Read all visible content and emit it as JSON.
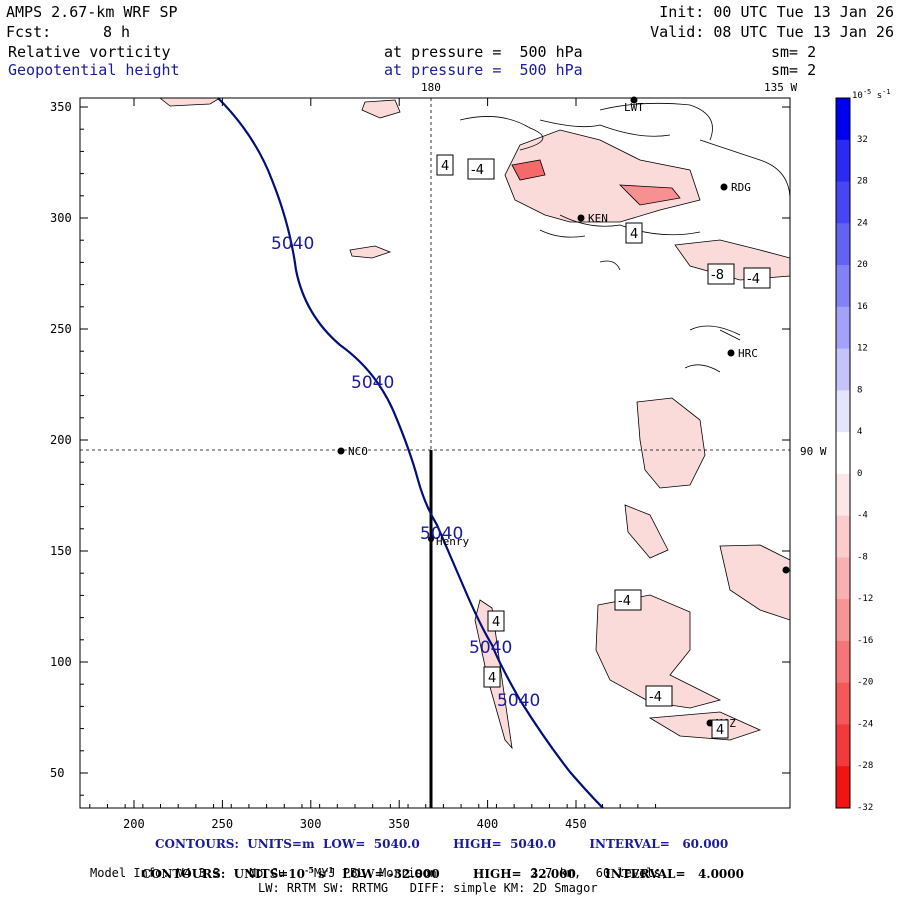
{
  "header": {
    "model": "AMPS 2.67-km WRF SP",
    "init": "Init: 00 UTC Tue 13 Jan 26",
    "fcst_label": "Fcst:",
    "fcst_value": "8 h",
    "valid": "Valid: 08 UTC Tue 13 Jan 26",
    "field1": "Relative vorticity",
    "field1_pressure": "at pressure =  500 hPa",
    "field1_sm": "sm= 2",
    "field2": "Geopotential height",
    "field2_pressure": "at pressure =  500 hPa",
    "field2_sm": "sm= 2"
  },
  "map": {
    "longitude_labels": [
      "180",
      "135 W",
      "90 W"
    ],
    "stations": [
      "LWT",
      "RDG",
      "KEN",
      "HRC",
      "NCO",
      "Henry",
      "MGZ"
    ],
    "x_ticks": [
      200,
      250,
      300,
      350,
      400,
      450
    ],
    "y_ticks": [
      50,
      100,
      150,
      200,
      250,
      300,
      350
    ],
    "height_contour_label": "5040",
    "vorticity_labels": [
      "4",
      "-4",
      "4",
      "-8",
      "-4",
      "-4",
      "4",
      "4",
      "-4",
      "4"
    ]
  },
  "colorbar": {
    "unit_base": "10",
    "unit_exp": "-5",
    "unit_tail": " s",
    "unit_tail_exp": "-1",
    "ticks": [
      "32",
      "28",
      "24",
      "20",
      "16",
      "12",
      "8",
      "4",
      "0",
      "-4",
      "-8",
      "-12",
      "-16",
      "-20",
      "-24",
      "-28",
      "-32"
    ],
    "colors": [
      "#0000f0",
      "#2a2af2",
      "#4646f4",
      "#6262f5",
      "#8282f7",
      "#a2a2f9",
      "#c4c4fb",
      "#e4e4fd",
      "#ffffff",
      "#fde6e6",
      "#fbcccc",
      "#f9b0b0",
      "#f79494",
      "#f57676",
      "#f45858",
      "#f23a3a",
      "#f01414"
    ]
  },
  "footer": {
    "line1": "CONTOURS:  UNITS=m  LOW=  5040.0        HIGH=  5040.0        INTERVAL=   60.000",
    "line2_a": "CONTOURS:  UNITS=10",
    "line2_exp": "-5",
    "line2_b": " s",
    "line2_exp2": "-1",
    "line2_c": "  LOW= -32.000        HIGH=  32.000       INTERVAL=   4.0000",
    "line3": "Model Info: V4.3.3    No Cu    MYJ PBL  Morrison             2.7 km,  60 levels,",
    "line4": "LW: RRTM SW: RRTMG   DIFF: simple KM: 2D Smagor"
  }
}
